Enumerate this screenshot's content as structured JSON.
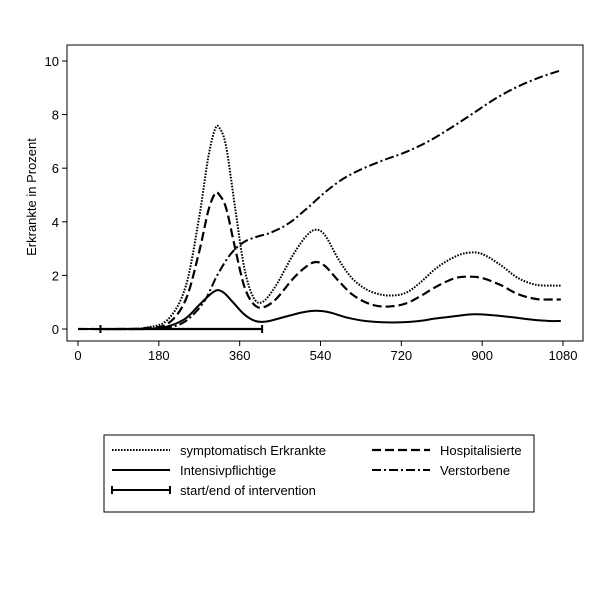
{
  "chart_data": {
    "type": "line",
    "title": "",
    "xlabel": "",
    "ylabel": "Erkrankte in Prozent",
    "xlim": [
      0,
      1080
    ],
    "ylim": [
      0,
      10
    ],
    "xticks": [
      0,
      180,
      360,
      540,
      720,
      900,
      1080
    ],
    "yticks": [
      0,
      2,
      4,
      6,
      8,
      10
    ],
    "xtick_labels": [
      "0",
      "180",
      "360",
      "540",
      "720",
      "900",
      "1080"
    ],
    "ytick_labels": [
      "0",
      "2",
      "4",
      "6",
      "8",
      "10"
    ],
    "grid": false,
    "legend_position": "bottom",
    "series": [
      {
        "name": "symptomatisch Erkrankte",
        "style": "dotted",
        "points": [
          [
            0,
            0
          ],
          [
            100,
            0
          ],
          [
            150,
            0.05
          ],
          [
            200,
            0.35
          ],
          [
            240,
            1.6
          ],
          [
            270,
            4.2
          ],
          [
            290,
            6.4
          ],
          [
            305,
            7.45
          ],
          [
            315,
            7.5
          ],
          [
            330,
            6.8
          ],
          [
            350,
            4.5
          ],
          [
            370,
            2.3
          ],
          [
            390,
            1.2
          ],
          [
            410,
            1.0
          ],
          [
            440,
            1.6
          ],
          [
            480,
            2.8
          ],
          [
            510,
            3.5
          ],
          [
            530,
            3.7
          ],
          [
            550,
            3.5
          ],
          [
            580,
            2.6
          ],
          [
            610,
            1.9
          ],
          [
            640,
            1.5
          ],
          [
            670,
            1.3
          ],
          [
            700,
            1.25
          ],
          [
            730,
            1.35
          ],
          [
            760,
            1.7
          ],
          [
            800,
            2.3
          ],
          [
            840,
            2.7
          ],
          [
            870,
            2.85
          ],
          [
            900,
            2.8
          ],
          [
            940,
            2.4
          ],
          [
            980,
            1.9
          ],
          [
            1020,
            1.65
          ],
          [
            1060,
            1.62
          ],
          [
            1075,
            1.62
          ]
        ]
      },
      {
        "name": "Hospitalisierte",
        "style": "dashed",
        "points": [
          [
            0,
            0
          ],
          [
            100,
            0
          ],
          [
            150,
            0.03
          ],
          [
            200,
            0.2
          ],
          [
            240,
            1.1
          ],
          [
            270,
            2.9
          ],
          [
            290,
            4.4
          ],
          [
            305,
            5.05
          ],
          [
            315,
            5.0
          ],
          [
            330,
            4.5
          ],
          [
            350,
            3.0
          ],
          [
            370,
            1.6
          ],
          [
            390,
            0.95
          ],
          [
            410,
            0.8
          ],
          [
            440,
            1.1
          ],
          [
            480,
            1.9
          ],
          [
            510,
            2.35
          ],
          [
            530,
            2.5
          ],
          [
            550,
            2.35
          ],
          [
            580,
            1.8
          ],
          [
            610,
            1.3
          ],
          [
            640,
            1.0
          ],
          [
            670,
            0.85
          ],
          [
            700,
            0.85
          ],
          [
            730,
            0.95
          ],
          [
            760,
            1.2
          ],
          [
            800,
            1.6
          ],
          [
            840,
            1.9
          ],
          [
            870,
            1.95
          ],
          [
            900,
            1.9
          ],
          [
            940,
            1.65
          ],
          [
            980,
            1.3
          ],
          [
            1020,
            1.12
          ],
          [
            1060,
            1.1
          ],
          [
            1075,
            1.1
          ]
        ]
      },
      {
        "name": "Intensivpflichtige",
        "style": "solid",
        "points": [
          [
            0,
            0
          ],
          [
            100,
            0
          ],
          [
            150,
            0.0
          ],
          [
            200,
            0.1
          ],
          [
            240,
            0.4
          ],
          [
            270,
            0.9
          ],
          [
            295,
            1.3
          ],
          [
            310,
            1.45
          ],
          [
            325,
            1.35
          ],
          [
            345,
            1.0
          ],
          [
            370,
            0.55
          ],
          [
            395,
            0.3
          ],
          [
            420,
            0.28
          ],
          [
            460,
            0.45
          ],
          [
            500,
            0.62
          ],
          [
            530,
            0.68
          ],
          [
            560,
            0.62
          ],
          [
            600,
            0.42
          ],
          [
            640,
            0.3
          ],
          [
            680,
            0.25
          ],
          [
            720,
            0.25
          ],
          [
            760,
            0.3
          ],
          [
            800,
            0.4
          ],
          [
            850,
            0.5
          ],
          [
            880,
            0.55
          ],
          [
            910,
            0.53
          ],
          [
            960,
            0.45
          ],
          [
            1010,
            0.35
          ],
          [
            1050,
            0.3
          ],
          [
            1075,
            0.3
          ]
        ]
      },
      {
        "name": "Verstorbene",
        "style": "dashdot",
        "points": [
          [
            0,
            0
          ],
          [
            150,
            0
          ],
          [
            200,
            0.05
          ],
          [
            240,
            0.3
          ],
          [
            280,
            1.0
          ],
          [
            310,
            2.0
          ],
          [
            340,
            2.8
          ],
          [
            370,
            3.25
          ],
          [
            400,
            3.45
          ],
          [
            430,
            3.6
          ],
          [
            470,
            3.95
          ],
          [
            510,
            4.5
          ],
          [
            550,
            5.1
          ],
          [
            590,
            5.6
          ],
          [
            630,
            5.95
          ],
          [
            680,
            6.3
          ],
          [
            730,
            6.6
          ],
          [
            780,
            7.0
          ],
          [
            830,
            7.5
          ],
          [
            880,
            8.05
          ],
          [
            930,
            8.6
          ],
          [
            980,
            9.05
          ],
          [
            1030,
            9.4
          ],
          [
            1075,
            9.65
          ]
        ]
      },
      {
        "name": "start/end of intervention",
        "style": "interval",
        "points": [
          [
            50,
            0
          ],
          [
            410,
            0
          ]
        ]
      }
    ]
  }
}
